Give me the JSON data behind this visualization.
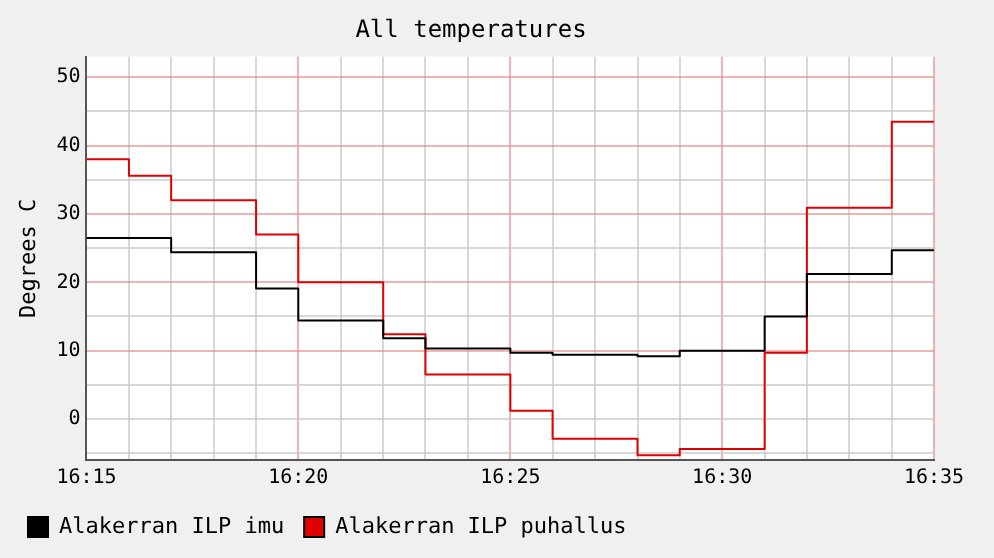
{
  "chart_data": {
    "type": "step",
    "title": "All temperatures",
    "ylabel": "Degrees C",
    "x": [
      16.25,
      16.2667,
      16.2833,
      16.3,
      16.3167,
      16.3333,
      16.35,
      16.3667,
      16.3833,
      16.4,
      16.4167,
      16.4333,
      16.45,
      16.4667,
      16.4833,
      16.5,
      16.5167,
      16.5333,
      16.55,
      16.5667,
      16.5833
    ],
    "series": [
      {
        "name": "Alakerran ILP imu",
        "color": "#000000",
        "values": [
          26.5,
          26.5,
          24.4,
          24.4,
          19.1,
          14.4,
          14.4,
          11.8,
          10.3,
          10.3,
          9.7,
          9.4,
          9.4,
          9.2,
          10,
          10,
          15,
          21.2,
          21.2,
          24.7,
          24.7
        ]
      },
      {
        "name": "Alakerran ILP puhallus",
        "color": "#e00000",
        "values": [
          38,
          35.6,
          32,
          32,
          27,
          20,
          20,
          12.4,
          6.5,
          6.5,
          1.2,
          -2.9,
          -2.9,
          -5.3,
          -4.4,
          -4.4,
          9.7,
          30.9,
          30.9,
          43.5,
          43.5
        ]
      }
    ],
    "xlim": [
      16.25,
      16.5833
    ],
    "xticks": [
      {
        "value": 16.25,
        "label": "16:15"
      },
      {
        "value": 16.2667,
        "label": null
      },
      {
        "value": 16.2833,
        "label": null
      },
      {
        "value": 16.3,
        "label": null
      },
      {
        "value": 16.3167,
        "label": null
      },
      {
        "value": 16.3333,
        "label": "16:20"
      },
      {
        "value": 16.35,
        "label": null
      },
      {
        "value": 16.3667,
        "label": null
      },
      {
        "value": 16.3833,
        "label": null
      },
      {
        "value": 16.4,
        "label": null
      },
      {
        "value": 16.4167,
        "label": "16:25"
      },
      {
        "value": 16.4333,
        "label": null
      },
      {
        "value": 16.45,
        "label": null
      },
      {
        "value": 16.4667,
        "label": null
      },
      {
        "value": 16.4833,
        "label": null
      },
      {
        "value": 16.5,
        "label": "16:30"
      },
      {
        "value": 16.5167,
        "label": null
      },
      {
        "value": 16.5333,
        "label": null
      },
      {
        "value": 16.55,
        "label": null
      },
      {
        "value": 16.5667,
        "label": null
      },
      {
        "value": 16.5833,
        "label": "16:35"
      }
    ],
    "ylim": [
      -6,
      53
    ],
    "yticks": [
      {
        "value": -5,
        "label": null
      },
      0,
      {
        "value": 5,
        "label": null
      },
      10,
      {
        "value": 15,
        "label": null
      },
      20,
      {
        "value": 25,
        "label": null
      },
      30,
      {
        "value": 35,
        "label": null
      },
      40,
      {
        "value": 45,
        "label": null
      },
      50
    ],
    "grid": true,
    "legend": "bottom left",
    "marker": "none",
    "line_style": "solid"
  }
}
